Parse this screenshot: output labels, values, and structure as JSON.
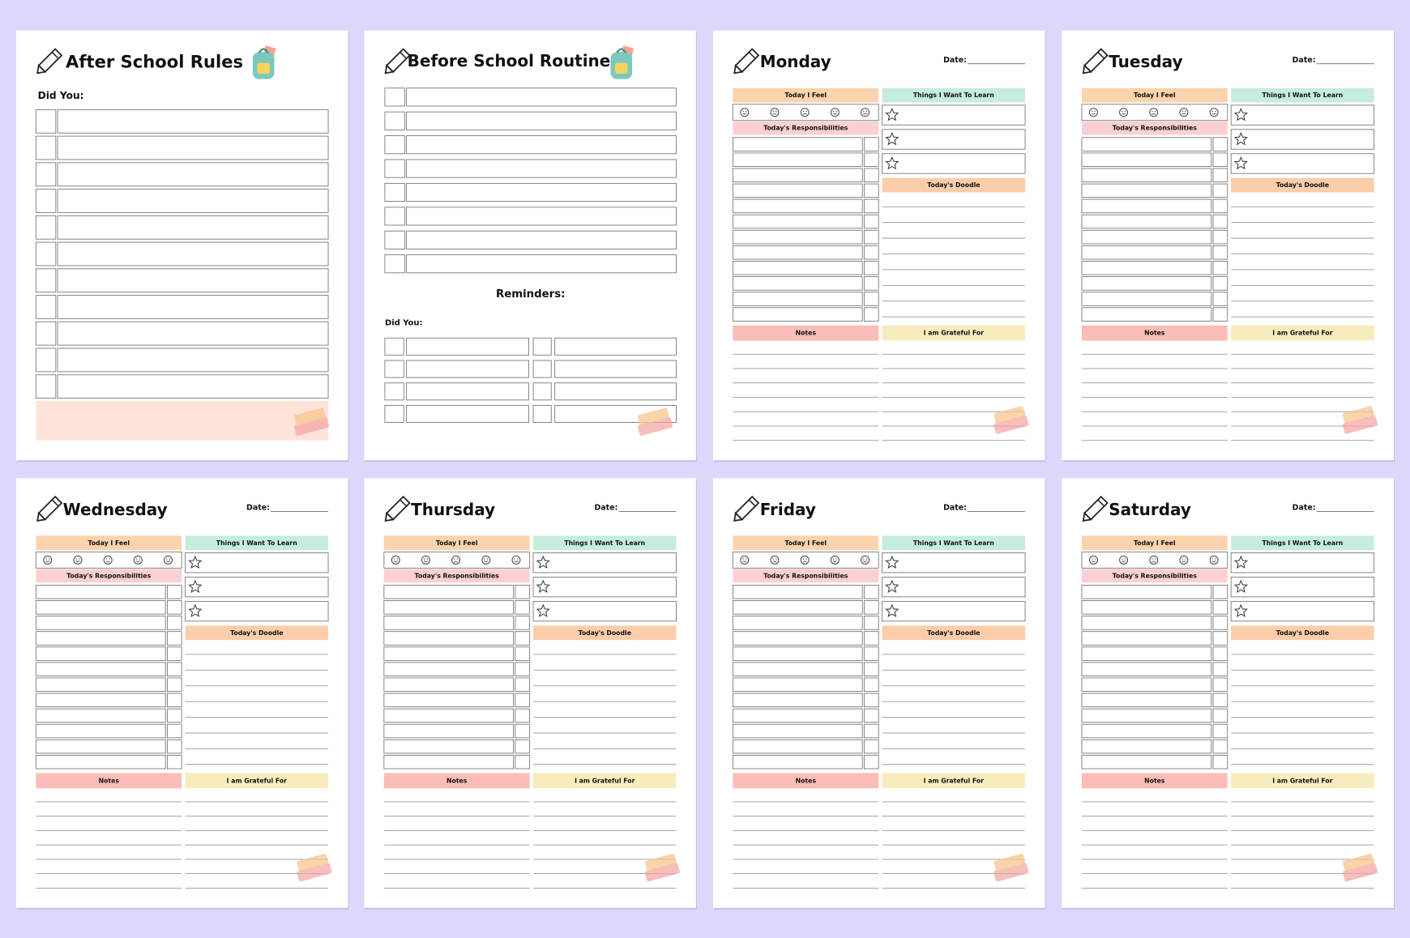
{
  "after_school_rules": {
    "title": "After School Rules",
    "label": "Did You:"
  },
  "before_school_routine": {
    "title": "Before School Routine",
    "reminders": "Reminders:",
    "label": "Did You:"
  },
  "day_pages": [
    {
      "title": "Monday",
      "date_label": "Date:",
      "feel": "Today I Feel",
      "learn": "Things I Want To Learn",
      "responsibilities": "Today's Responsibilities",
      "doodle": "Today's Doodle",
      "notes": "Notes",
      "grateful": "I am Grateful For"
    },
    {
      "title": "Tuesday",
      "date_label": "Date:",
      "feel": "Today I Feel",
      "learn": "Things I Want To Learn",
      "responsibilities": "Today's Responsibilities",
      "doodle": "Today's Doodle",
      "notes": "Notes",
      "grateful": "I am Grateful For"
    },
    {
      "title": "Wednesday",
      "date_label": "Date:",
      "feel": "Today I Feel",
      "learn": "Things I Want To Learn",
      "responsibilities": "Today's Responsibilities",
      "doodle": "Today's Doodle",
      "notes": "Notes",
      "grateful": "I am Grateful For"
    },
    {
      "title": "Thursday",
      "date_label": "Date:",
      "feel": "Today I Feel",
      "learn": "Things I Want To Learn",
      "responsibilities": "Today's Responsibilities",
      "doodle": "Today's Doodle",
      "notes": "Notes",
      "grateful": "I am Grateful For"
    },
    {
      "title": "Friday",
      "date_label": "Date:",
      "feel": "Today I Feel",
      "learn": "Things I Want To Learn",
      "responsibilities": "Today's Responsibilities",
      "doodle": "Today's Doodle",
      "notes": "Notes",
      "grateful": "I am Grateful For"
    },
    {
      "title": "Saturday",
      "date_label": "Date:",
      "feel": "Today I Feel",
      "learn": "Things I Want To Learn",
      "responsibilities": "Today's Responsibilities",
      "doodle": "Today's Doodle",
      "notes": "Notes",
      "grateful": "I am Grateful For"
    }
  ]
}
